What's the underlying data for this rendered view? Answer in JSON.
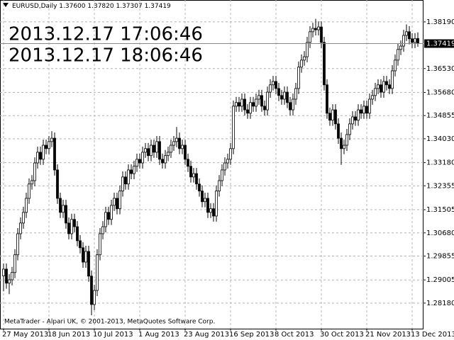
{
  "header": {
    "symbol": "EURUSD,Daily",
    "ohlc": [
      "1.37600",
      "1.37820",
      "1.37307",
      "1.37419"
    ]
  },
  "chart_data": {
    "type": "candlestick",
    "annotations": [
      {
        "text": "2013.12.17 17:06:46",
        "color": "#ff0000"
      },
      {
        "text": "2013.12.17 18:06:46",
        "color": "#00ff00"
      }
    ],
    "footer": "MetaTrader - Alpari UK, © 2001-2013, MetaQuotes Software Corp.",
    "categories": [
      "27 May 2013",
      null,
      null,
      null,
      null,
      null,
      null,
      null,
      null,
      null,
      null,
      null,
      null,
      null,
      null,
      null,
      "18 Jun 2013",
      null,
      null,
      null,
      null,
      null,
      null,
      null,
      null,
      null,
      null,
      null,
      null,
      null,
      null,
      null,
      "10 Jul 2013",
      null,
      null,
      null,
      null,
      null,
      null,
      null,
      null,
      null,
      null,
      null,
      null,
      null,
      null,
      null,
      "1 Aug 2013",
      null,
      null,
      null,
      null,
      null,
      null,
      null,
      null,
      null,
      null,
      null,
      null,
      null,
      null,
      null,
      "23 Aug 2013",
      null,
      null,
      null,
      null,
      null,
      null,
      null,
      null,
      null,
      null,
      null,
      null,
      null,
      null,
      null,
      "16 Sep 2013",
      null,
      null,
      null,
      null,
      null,
      null,
      null,
      null,
      null,
      null,
      null,
      null,
      null,
      null,
      null,
      "8 Oct 2013",
      null,
      null,
      null,
      null,
      null,
      null,
      null,
      null,
      null,
      null,
      null,
      null,
      null,
      null,
      null,
      "30 Oct 2013",
      null,
      null,
      null,
      null,
      null,
      null,
      null,
      null,
      null,
      null,
      null,
      null,
      null,
      null,
      null,
      "21 Nov 2013",
      null,
      null,
      null,
      null,
      null,
      null,
      null,
      null,
      null,
      null,
      null,
      null,
      null,
      null,
      null,
      "13 Dec 2013",
      null,
      null
    ],
    "open": [
      1.2915,
      1.2939,
      1.2889,
      1.2901,
      1.2927,
      1.299,
      1.3065,
      1.3103,
      1.3141,
      1.3191,
      1.3242,
      1.3254,
      1.3317,
      1.3355,
      1.333,
      1.338,
      1.3368,
      1.3393,
      1.3405,
      1.3292,
      1.3191,
      1.3141,
      1.3166,
      1.3103,
      1.3065,
      1.3116,
      1.309,
      1.304,
      1.3015,
      1.2964,
      1.3002,
      1.2914,
      1.2813,
      1.2863,
      1.299,
      1.3065,
      1.309,
      1.3141,
      1.3116,
      1.3166,
      1.3191,
      1.3154,
      1.3217,
      1.3267,
      1.3242,
      1.3292,
      1.3279,
      1.3305,
      1.333,
      1.3317,
      1.3355,
      1.3368,
      1.3343,
      1.338,
      1.3355,
      1.3393,
      1.333,
      1.3317,
      1.3343,
      1.3355,
      1.338,
      1.3393,
      1.3405,
      1.3368,
      1.338,
      1.333,
      1.3305,
      1.3267,
      1.3279,
      1.3242,
      1.3217,
      1.3179,
      1.3191,
      1.3141,
      1.3154,
      1.3128,
      1.3217,
      1.3254,
      1.3292,
      1.3317,
      1.333,
      1.3368,
      1.3519,
      1.3532,
      1.3519,
      1.3544,
      1.3506,
      1.3494,
      1.3532,
      1.3519,
      1.3544,
      1.3557,
      1.3519,
      1.3506,
      1.3569,
      1.3595,
      1.3607,
      1.3582,
      1.3557,
      1.3544,
      1.3569,
      1.3532,
      1.3506,
      1.3544,
      1.3582,
      1.3658,
      1.3683,
      1.3695,
      1.3746,
      1.3784,
      1.3796,
      1.3791,
      1.3801,
      1.3746,
      1.3595,
      1.3494,
      1.3469,
      1.3506,
      1.3456,
      1.3405,
      1.3368,
      1.338,
      1.3418,
      1.3456,
      1.3481,
      1.3469,
      1.3506,
      1.3494,
      1.3519,
      1.3494,
      1.3544,
      1.3557,
      1.3582,
      1.3595,
      1.3569,
      1.3607,
      1.3595,
      1.3582,
      1.3645,
      1.3683,
      1.3721,
      1.3733,
      1.3771,
      1.3784,
      1.3759,
      1.3746,
      1.376
    ],
    "high": [
      1.2959,
      1.2959,
      1.2921,
      1.2947,
      1.301,
      1.3085,
      1.3123,
      1.3161,
      1.3211,
      1.3262,
      1.3274,
      1.3337,
      1.3375,
      1.3375,
      1.34,
      1.34,
      1.3413,
      1.343,
      1.3425,
      1.3312,
      1.3211,
      1.3186,
      1.3186,
      1.3123,
      1.3136,
      1.3136,
      1.311,
      1.306,
      1.3035,
      1.3022,
      1.3022,
      1.2934,
      1.2883,
      1.301,
      1.3085,
      1.311,
      1.3161,
      1.3161,
      1.3186,
      1.3211,
      1.3211,
      1.3237,
      1.3287,
      1.3287,
      1.3312,
      1.3312,
      1.3325,
      1.335,
      1.335,
      1.3375,
      1.3388,
      1.3388,
      1.34,
      1.34,
      1.3413,
      1.3413,
      1.335,
      1.3363,
      1.3375,
      1.34,
      1.3413,
      1.3445,
      1.3425,
      1.34,
      1.34,
      1.335,
      1.3325,
      1.3299,
      1.3299,
      1.3262,
      1.3237,
      1.3211,
      1.3211,
      1.3174,
      1.3174,
      1.3237,
      1.3274,
      1.3312,
      1.3337,
      1.335,
      1.3388,
      1.3539,
      1.3552,
      1.3552,
      1.3564,
      1.3564,
      1.3526,
      1.3552,
      1.3552,
      1.3564,
      1.3577,
      1.3577,
      1.3539,
      1.3589,
      1.3615,
      1.3627,
      1.3627,
      1.3602,
      1.3577,
      1.3589,
      1.3589,
      1.3552,
      1.3564,
      1.3602,
      1.3678,
      1.3703,
      1.3715,
      1.3766,
      1.3804,
      1.3816,
      1.383,
      1.3821,
      1.3821,
      1.3766,
      1.3615,
      1.3514,
      1.3526,
      1.3526,
      1.3476,
      1.3425,
      1.34,
      1.3438,
      1.3476,
      1.3501,
      1.3501,
      1.3526,
      1.3526,
      1.3539,
      1.3539,
      1.3564,
      1.3577,
      1.3602,
      1.3615,
      1.3615,
      1.3627,
      1.3627,
      1.3615,
      1.3665,
      1.3703,
      1.3741,
      1.3753,
      1.3791,
      1.381,
      1.3804,
      1.3779,
      1.3779,
      1.3782
    ],
    "low": [
      1.286,
      1.2869,
      1.285,
      1.2881,
      1.2907,
      1.297,
      1.3045,
      1.3083,
      1.3121,
      1.3171,
      1.3222,
      1.3234,
      1.3297,
      1.331,
      1.331,
      1.3348,
      1.3348,
      1.3373,
      1.3272,
      1.3171,
      1.3121,
      1.3121,
      1.3083,
      1.3045,
      1.3045,
      1.307,
      1.302,
      1.2995,
      1.2944,
      1.2944,
      1.2894,
      1.2775,
      1.2793,
      1.2843,
      1.297,
      1.3045,
      1.307,
      1.3096,
      1.3096,
      1.3146,
      1.3134,
      1.3134,
      1.3197,
      1.3222,
      1.3222,
      1.3259,
      1.3259,
      1.3285,
      1.3297,
      1.3297,
      1.3335,
      1.3323,
      1.3323,
      1.3335,
      1.3335,
      1.331,
      1.3297,
      1.3297,
      1.3323,
      1.3335,
      1.336,
      1.3373,
      1.3348,
      1.3348,
      1.331,
      1.3285,
      1.3247,
      1.3247,
      1.3222,
      1.3197,
      1.3159,
      1.3159,
      1.3121,
      1.3121,
      1.3108,
      1.3108,
      1.3197,
      1.3234,
      1.3272,
      1.3297,
      1.331,
      1.3348,
      1.3499,
      1.3499,
      1.3499,
      1.3486,
      1.3474,
      1.3474,
      1.3499,
      1.3499,
      1.3524,
      1.3499,
      1.3486,
      1.3486,
      1.3549,
      1.3575,
      1.3562,
      1.3537,
      1.3524,
      1.3524,
      1.3512,
      1.3486,
      1.3486,
      1.3524,
      1.3562,
      1.3638,
      1.3663,
      1.3675,
      1.3726,
      1.3764,
      1.3771,
      1.3771,
      1.3726,
      1.3575,
      1.3474,
      1.3449,
      1.3449,
      1.3436,
      1.3385,
      1.331,
      1.3348,
      1.336,
      1.3398,
      1.3436,
      1.3449,
      1.3449,
      1.3474,
      1.3474,
      1.3474,
      1.3474,
      1.3524,
      1.3537,
      1.3562,
      1.3549,
      1.3549,
      1.3575,
      1.3562,
      1.3562,
      1.3625,
      1.3663,
      1.3701,
      1.3713,
      1.3751,
      1.3739,
      1.3726,
      1.3726,
      1.37307
    ],
    "close": [
      1.2939,
      1.2889,
      1.2901,
      1.2927,
      1.299,
      1.3065,
      1.3103,
      1.3141,
      1.3191,
      1.3242,
      1.3254,
      1.3317,
      1.3355,
      1.333,
      1.338,
      1.3368,
      1.3393,
      1.3405,
      1.3292,
      1.3191,
      1.3141,
      1.3166,
      1.3103,
      1.3065,
      1.3116,
      1.309,
      1.304,
      1.3015,
      1.2964,
      1.3002,
      1.2914,
      1.2813,
      1.2863,
      1.299,
      1.3065,
      1.309,
      1.3141,
      1.3116,
      1.3166,
      1.3191,
      1.3154,
      1.3217,
      1.3267,
      1.3242,
      1.3292,
      1.3279,
      1.3305,
      1.333,
      1.3317,
      1.3355,
      1.3368,
      1.3343,
      1.338,
      1.3355,
      1.3393,
      1.333,
      1.3317,
      1.3343,
      1.3355,
      1.338,
      1.3393,
      1.3405,
      1.3368,
      1.338,
      1.333,
      1.3305,
      1.3267,
      1.3279,
      1.3242,
      1.3217,
      1.3179,
      1.3191,
      1.3141,
      1.3154,
      1.3128,
      1.3217,
      1.3254,
      1.3292,
      1.3317,
      1.333,
      1.3368,
      1.3519,
      1.3532,
      1.3519,
      1.3544,
      1.3506,
      1.3494,
      1.3532,
      1.3519,
      1.3544,
      1.3557,
      1.3519,
      1.3506,
      1.3569,
      1.3595,
      1.3607,
      1.3582,
      1.3557,
      1.3544,
      1.3569,
      1.3532,
      1.3506,
      1.3544,
      1.3582,
      1.3658,
      1.3683,
      1.3695,
      1.3746,
      1.3784,
      1.3796,
      1.3791,
      1.3801,
      1.3746,
      1.3595,
      1.3494,
      1.3469,
      1.3506,
      1.3456,
      1.3405,
      1.3368,
      1.338,
      1.3418,
      1.3456,
      1.3481,
      1.3469,
      1.3506,
      1.3494,
      1.3519,
      1.3494,
      1.3544,
      1.3557,
      1.3582,
      1.3595,
      1.3569,
      1.3607,
      1.3595,
      1.3582,
      1.3645,
      1.3683,
      1.3721,
      1.3733,
      1.3771,
      1.3784,
      1.3759,
      1.3746,
      1.3759,
      1.37419
    ],
    "bull_color": "#ffffff",
    "bear_color": "#000000",
    "ylim": [
      1.2727,
      1.3897
    ],
    "yticks": [
      {
        "value": 1.3819,
        "label": "1.38190"
      },
      {
        "value": 1.3653,
        "label": "1.36530"
      },
      {
        "value": 1.3568,
        "label": "1.35680"
      },
      {
        "value": 1.34855,
        "label": "1.34855"
      },
      {
        "value": 1.3403,
        "label": "1.34030"
      },
      {
        "value": 1.3318,
        "label": "1.33180"
      },
      {
        "value": 1.32355,
        "label": "1.32355"
      },
      {
        "value": 1.31505,
        "label": "1.31505"
      },
      {
        "value": 1.3068,
        "label": "1.30680"
      },
      {
        "value": 1.29855,
        "label": "1.29855"
      },
      {
        "value": 1.29005,
        "label": "1.29005"
      },
      {
        "value": 1.2818,
        "label": "1.28180"
      }
    ],
    "current_price": {
      "value": 1.37419,
      "label": "1.37419"
    },
    "grid": true
  }
}
